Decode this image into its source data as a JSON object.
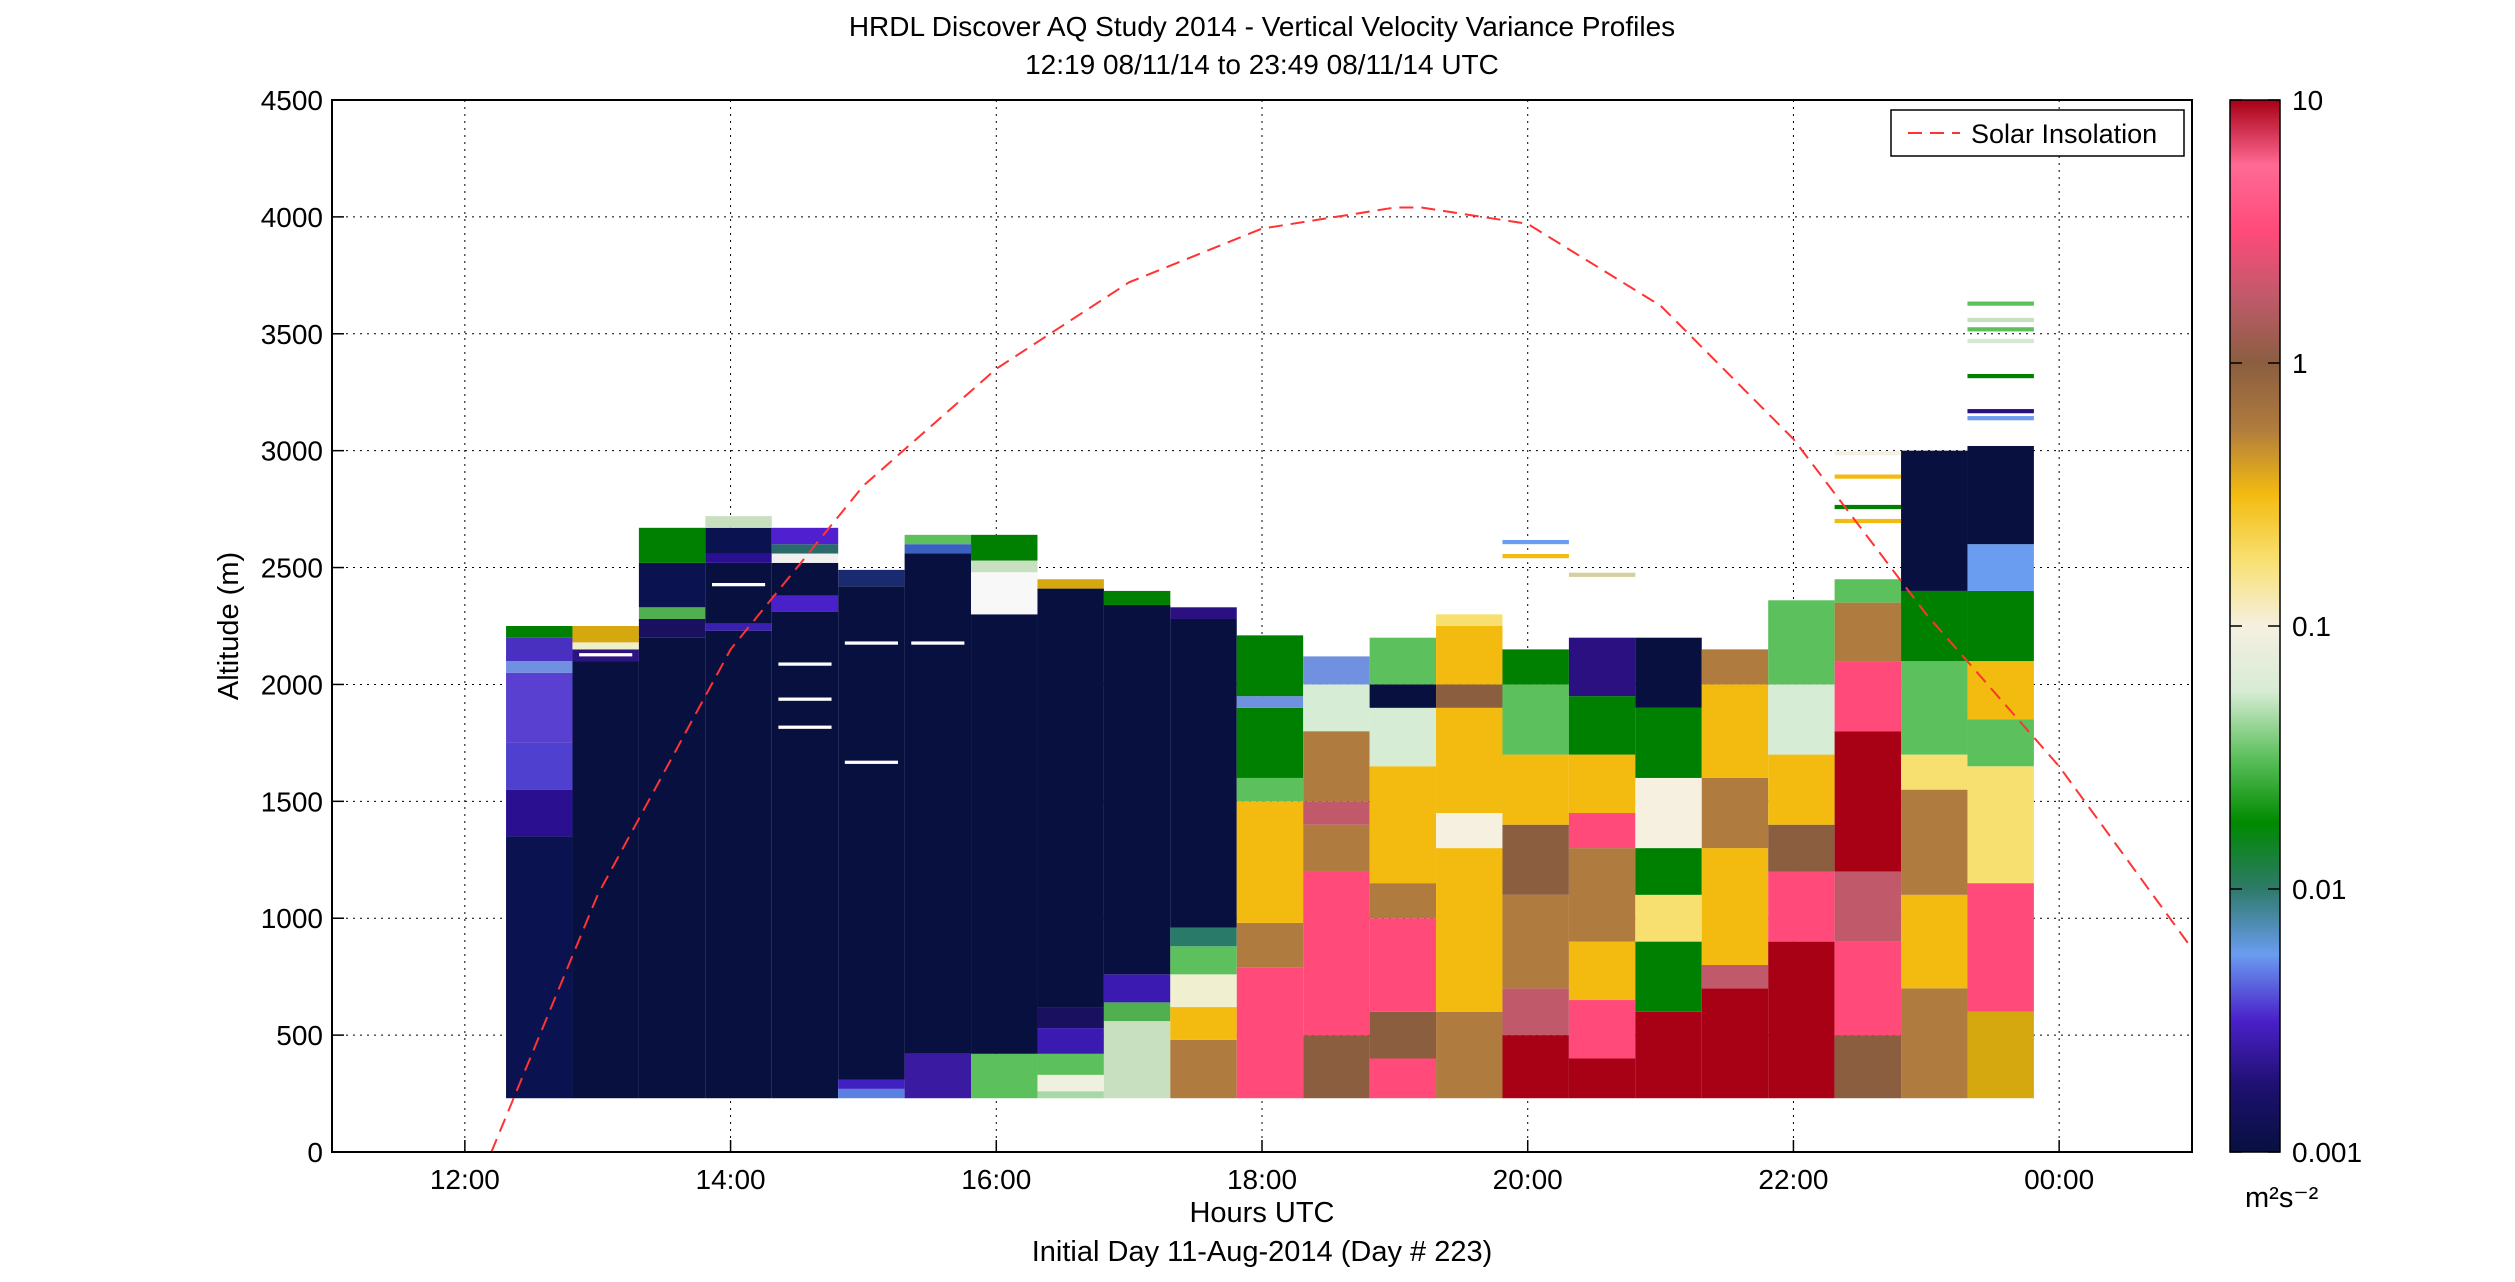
{
  "chart_data": {
    "type": "heatmap",
    "title": "HRDL Discover AQ Study 2014 - Vertical Velocity Variance Profiles",
    "subtitle": "12:19 08/11/14 to 23:49 08/11/14  UTC",
    "xlabel": "Hours UTC",
    "xlabel2": "Initial Day 11-Aug-2014 (Day # 223)",
    "ylabel": "Altitude (m)",
    "x_ticks": [
      "12:00",
      "14:00",
      "16:00",
      "18:00",
      "20:00",
      "22:00",
      "00:00"
    ],
    "y_ticks": [
      "0",
      "500",
      "1000",
      "1500",
      "2000",
      "2500",
      "3000",
      "3500",
      "4000",
      "4500"
    ],
    "xlim_hours": [
      11,
      25
    ],
    "ylim": [
      0,
      4500
    ],
    "grid": true,
    "colorbar": {
      "scale": "log",
      "range": [
        0.001,
        10
      ],
      "ticks": [
        "10",
        "1",
        "0.1",
        "0.01",
        "0.001"
      ],
      "unit": "m²s⁻²",
      "colors": [
        "#07103f",
        "#1e1070",
        "#4a20c8",
        "#6a9cf0",
        "#2e7a6a",
        "#008a00",
        "#5cc05c",
        "#d7ecd5",
        "#f5f0e0",
        "#f8e070",
        "#f3bb10",
        "#b07b3e",
        "#8b5e40",
        "#c05a6a",
        "#ff4a7a",
        "#ff6a95",
        "#a80015"
      ]
    },
    "legend": {
      "position": "top-right",
      "entries": [
        "Solar Insolation"
      ],
      "color": "#ff3333"
    },
    "series": [
      {
        "name": "Solar Insolation",
        "x_hours": [
          12.2,
          13.0,
          14.0,
          15.0,
          16.0,
          17.0,
          18.0,
          19.0,
          19.2,
          20.0,
          21.0,
          22.0,
          23.0,
          24.0,
          25.0
        ],
        "y": [
          0,
          1100,
          2150,
          2850,
          3350,
          3720,
          3950,
          4040,
          4040,
          3970,
          3620,
          3050,
          2300,
          1650,
          870
        ]
      }
    ],
    "profiles": [
      {
        "t": 12.56,
        "zmin": 230,
        "levels": [
          [
            "#0a1250",
            1350
          ],
          [
            "#2a1090",
            1550
          ],
          [
            "#5040d0",
            1750
          ],
          [
            "#5a40d0",
            2050
          ],
          [
            "#7090e0",
            2100
          ],
          [
            "#4a30c0",
            2200
          ],
          [
            "#008000",
            2250
          ]
        ]
      },
      {
        "t": 13.06,
        "zmin": 230,
        "levels": [
          [
            "#07103f",
            2100
          ],
          [
            "#2a1480",
            2150
          ],
          [
            "#f0f0c8",
            2180
          ],
          [
            "#d5a810",
            2250
          ]
        ]
      },
      {
        "t": 13.56,
        "zmin": 230,
        "levels": [
          [
            "#07103f",
            2200
          ],
          [
            "#1a1060",
            2280
          ],
          [
            "#50b050",
            2330
          ],
          [
            "#0a1250",
            2520
          ],
          [
            "#008000",
            2670
          ]
        ]
      },
      {
        "t": 14.06,
        "zmin": 230,
        "levels": [
          [
            "#07103f",
            2230
          ],
          [
            "#3a20b0",
            2260
          ],
          [
            "#07103f",
            2520
          ],
          [
            "#2a1090",
            2560
          ],
          [
            "#0a1250",
            2670
          ],
          [
            "#c8e0c0",
            2720
          ]
        ]
      },
      {
        "t": 14.56,
        "zmin": 230,
        "levels": [
          [
            "#07103f",
            2310
          ],
          [
            "#4a20c8",
            2380
          ],
          [
            "#07103f",
            2520
          ],
          [
            "#f0f0f0",
            2560
          ],
          [
            "#2a6a6a",
            2600
          ],
          [
            "#5020d0",
            2670
          ]
        ]
      },
      {
        "t": 15.06,
        "zmin": 230,
        "levels": [
          [
            "#5a80e0",
            270
          ],
          [
            "#4020c0",
            310
          ],
          [
            "#07103f",
            2420
          ],
          [
            "#1a2a70",
            2490
          ]
        ]
      },
      {
        "t": 15.56,
        "zmin": 230,
        "levels": [
          [
            "#3a1aa0",
            420
          ],
          [
            "#07103f",
            2560
          ],
          [
            "#3a60c0",
            2600
          ],
          [
            "#5cc05c",
            2640
          ]
        ]
      },
      {
        "t": 16.06,
        "zmin": 230,
        "levels": [
          [
            "#5cc05c",
            420
          ],
          [
            "#07103f",
            2300
          ],
          [
            "#f8f8f8",
            2480
          ],
          [
            "#c8e0c0",
            2530
          ],
          [
            "#008000",
            2640
          ]
        ]
      },
      {
        "t": 16.56,
        "zmin": 230,
        "levels": [
          [
            "#a8d8a8",
            260
          ],
          [
            "#f0f0e0",
            330
          ],
          [
            "#5cc05c",
            420
          ],
          [
            "#3a1ab0",
            530
          ],
          [
            "#1a1060",
            620
          ],
          [
            "#07103f",
            2410
          ],
          [
            "#d5a810",
            2450
          ]
        ]
      },
      {
        "t": 17.06,
        "zmin": 230,
        "levels": [
          [
            "#c8e0c0",
            560
          ],
          [
            "#50b050",
            640
          ],
          [
            "#3a1ab0",
            760
          ],
          [
            "#07103f",
            2340
          ],
          [
            "#008000",
            2400
          ]
        ]
      },
      {
        "t": 17.56,
        "zmin": 230,
        "levels": [
          [
            "#b07b3e",
            480
          ],
          [
            "#f3bb10",
            620
          ],
          [
            "#f0f0d0",
            760
          ],
          [
            "#5cc05c",
            880
          ],
          [
            "#2a7a6a",
            960
          ],
          [
            "#07103f",
            2280
          ],
          [
            "#2a1080",
            2330
          ]
        ]
      },
      {
        "t": 18.06,
        "zmin": 230,
        "levels": [
          [
            "#ff4a7a",
            790
          ],
          [
            "#b07b3e",
            980
          ],
          [
            "#f3bb10",
            1500
          ],
          [
            "#5cc05c",
            1600
          ],
          [
            "#008000",
            1900
          ],
          [
            "#7090e0",
            1950
          ],
          [
            "#008000",
            2210
          ]
        ]
      },
      {
        "t": 18.56,
        "zmin": 230,
        "levels": [
          [
            "#8b5e40",
            500
          ],
          [
            "#ff4a7a",
            1200
          ],
          [
            "#b07b3e",
            1400
          ],
          [
            "#c05a6a",
            1500
          ],
          [
            "#b07b3e",
            1800
          ],
          [
            "#d7ecd5",
            2000
          ],
          [
            "#7090e0",
            2120
          ]
        ]
      },
      {
        "t": 19.06,
        "zmin": 230,
        "levels": [
          [
            "#ff4a7a",
            400
          ],
          [
            "#8b5e40",
            600
          ],
          [
            "#ff4a7a",
            1000
          ],
          [
            "#b07b3e",
            1150
          ],
          [
            "#f3bb10",
            1650
          ],
          [
            "#d7ecd5",
            1900
          ],
          [
            "#07103f",
            2000
          ],
          [
            "#5cc05c",
            2200
          ]
        ]
      },
      {
        "t": 19.56,
        "zmin": 230,
        "levels": [
          [
            "#b07b3e",
            600
          ],
          [
            "#f3bb10",
            1300
          ],
          [
            "#f5f0e0",
            1450
          ],
          [
            "#f3bb10",
            1900
          ],
          [
            "#8b5e40",
            2000
          ],
          [
            "#f3bb10",
            2250
          ],
          [
            "#f8e070",
            2300
          ]
        ]
      },
      {
        "t": 20.06,
        "zmin": 230,
        "levels": [
          [
            "#a80015",
            500
          ],
          [
            "#c05a6a",
            700
          ],
          [
            "#b07b3e",
            1100
          ],
          [
            "#8b5e40",
            1400
          ],
          [
            "#f3bb10",
            1700
          ],
          [
            "#5cc05c",
            2000
          ],
          [
            "#008000",
            2150
          ]
        ]
      },
      {
        "t": 20.56,
        "zmin": 230,
        "levels": [
          [
            "#a80015",
            400
          ],
          [
            "#ff4a7a",
            650
          ],
          [
            "#f3bb10",
            900
          ],
          [
            "#b07b3e",
            1300
          ],
          [
            "#ff4a7a",
            1450
          ],
          [
            "#f3bb10",
            1700
          ],
          [
            "#008000",
            1950
          ],
          [
            "#2a1080",
            2200
          ]
        ]
      },
      {
        "t": 21.06,
        "zmin": 230,
        "levels": [
          [
            "#a80015",
            600
          ],
          [
            "#008000",
            900
          ],
          [
            "#f8e070",
            1100
          ],
          [
            "#008000",
            1300
          ],
          [
            "#f5f0e0",
            1600
          ],
          [
            "#008000",
            1900
          ],
          [
            "#07103f",
            2200
          ]
        ]
      },
      {
        "t": 21.56,
        "zmin": 230,
        "levels": [
          [
            "#a80015",
            700
          ],
          [
            "#c05a6a",
            800
          ],
          [
            "#f3bb10",
            1300
          ],
          [
            "#b07b3e",
            1600
          ],
          [
            "#f3bb10",
            2000
          ],
          [
            "#b07b3e",
            2150
          ]
        ]
      },
      {
        "t": 22.06,
        "zmin": 230,
        "levels": [
          [
            "#a80015",
            900
          ],
          [
            "#ff4a7a",
            1200
          ],
          [
            "#8b5e40",
            1400
          ],
          [
            "#f3bb10",
            1700
          ],
          [
            "#d7ecd5",
            2000
          ],
          [
            "#5cc05c",
            2360
          ]
        ]
      },
      {
        "t": 22.56,
        "zmin": 230,
        "levels": [
          [
            "#8b5e40",
            500
          ],
          [
            "#ff4a7a",
            900
          ],
          [
            "#c05a6a",
            1200
          ],
          [
            "#a80015",
            1800
          ],
          [
            "#ff4a7a",
            2100
          ],
          [
            "#b07b3e",
            2350
          ],
          [
            "#5cc05c",
            2450
          ]
        ]
      },
      {
        "t": 23.06,
        "zmin": 230,
        "levels": [
          [
            "#b07b3e",
            700
          ],
          [
            "#f3bb10",
            1100
          ],
          [
            "#b07b3e",
            1550
          ],
          [
            "#f8e070",
            1700
          ],
          [
            "#5cc05c",
            2100
          ],
          [
            "#008000",
            2400
          ],
          [
            "#07103f",
            3000
          ]
        ]
      },
      {
        "t": 23.56,
        "zmin": 230,
        "levels": [
          [
            "#d5a810",
            600
          ],
          [
            "#ff4a7a",
            1150
          ],
          [
            "#f8e070",
            1650
          ],
          [
            "#5cc05c",
            1850
          ],
          [
            "#f3bb10",
            2100
          ],
          [
            "#008000",
            2400
          ],
          [
            "#6a9cf0",
            2600
          ],
          [
            "#07103f",
            3020
          ]
        ]
      }
    ],
    "isolated_bars": [
      {
        "t": 20.06,
        "z": 2600,
        "color": "#6a9cf0"
      },
      {
        "t": 20.06,
        "z": 2540,
        "color": "#f3bb10"
      },
      {
        "t": 20.56,
        "z": 2460,
        "color": "#d5d0a0"
      },
      {
        "t": 22.56,
        "z": 2980,
        "color": "#f5f0e0"
      },
      {
        "t": 22.56,
        "z": 2880,
        "color": "#f3bb10"
      },
      {
        "t": 22.56,
        "z": 2750,
        "color": "#008000"
      },
      {
        "t": 22.56,
        "z": 2690,
        "color": "#f3bb10"
      },
      {
        "t": 23.56,
        "z": 3620,
        "color": "#5cc05c"
      },
      {
        "t": 23.56,
        "z": 3550,
        "color": "#c8e0c0"
      },
      {
        "t": 23.56,
        "z": 3510,
        "color": "#5cc05c"
      },
      {
        "t": 23.56,
        "z": 3460,
        "color": "#d7e7d5"
      },
      {
        "t": 23.56,
        "z": 3310,
        "color": "#008000"
      },
      {
        "t": 23.56,
        "z": 3160,
        "color": "#2a1080"
      },
      {
        "t": 23.56,
        "z": 3130,
        "color": "#6a9cf0"
      }
    ],
    "white_gaps": [
      {
        "t": 14.56,
        "z": 2080
      },
      {
        "t": 14.56,
        "z": 1930
      },
      {
        "t": 14.56,
        "z": 1810
      },
      {
        "t": 15.06,
        "z": 1660
      },
      {
        "t": 15.06,
        "z": 2170
      },
      {
        "t": 15.56,
        "z": 2170
      },
      {
        "t": 13.06,
        "z": 2120
      },
      {
        "t": 14.06,
        "z": 2420
      }
    ]
  }
}
